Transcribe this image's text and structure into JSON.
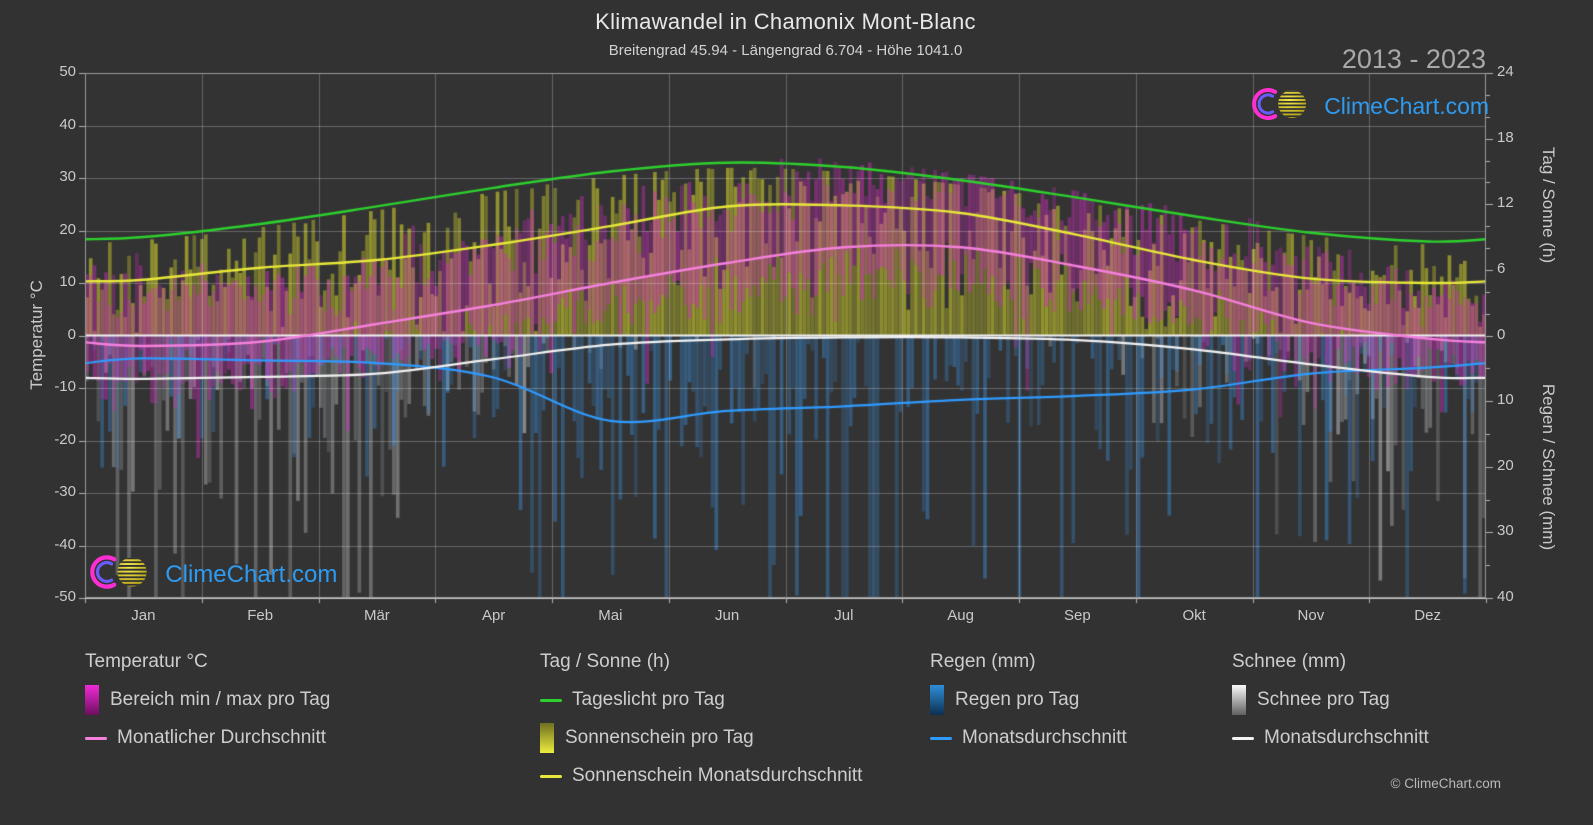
{
  "meta": {
    "title": "Klimawandel in Chamonix Mont-Blanc",
    "subtitle": "Breitengrad 45.94 - Längengrad 6.704 - Höhe 1041.0",
    "year_range": "2013 - 2023",
    "copyright": "© ClimeChart.com",
    "brand": "ClimeChart.com"
  },
  "axes": {
    "left": {
      "title": "Temperatur °C",
      "ticks": [
        50,
        40,
        30,
        20,
        10,
        0,
        -10,
        -20,
        -30,
        -40,
        -50
      ],
      "range": [
        -50,
        50
      ]
    },
    "right_sun": {
      "title": "Tag / Sonne (h)",
      "ticks": [
        24,
        18,
        12,
        6,
        0
      ],
      "range": [
        0,
        24
      ]
    },
    "right_precip": {
      "title": "Regen / Schnee (mm)",
      "ticks": [
        10,
        20,
        30,
        40
      ],
      "range": [
        0,
        40
      ],
      "inverted": true
    },
    "x": {
      "months": [
        "Jan",
        "Feb",
        "Mär",
        "Apr",
        "Mai",
        "Jun",
        "Jul",
        "Aug",
        "Sep",
        "Okt",
        "Nov",
        "Dez"
      ]
    }
  },
  "colors": {
    "daylight_line": "#2dd02d",
    "sunshine_line": "#e8e83a",
    "temp_avg_line": "#f580dd",
    "rain_avg_line": "#2f9bff",
    "snow_avg_line": "#f2f2f2",
    "sun_bar": "#d7d72d",
    "temp_bar": "#d02dbe",
    "rain_bar": "#3a8cd7",
    "snow_bar": "#b5b5b5",
    "brand_blue": "#2e9bf0",
    "logo_magenta": "#ff2ed2",
    "logo_inner": "#6a5cff",
    "logo_yellow": "#e8d829",
    "swatch_temp_range": [
      "#f02ad8",
      "#6d0f5e"
    ],
    "swatch_sunshine": [
      "#6f6f22",
      "#ecec3e"
    ],
    "swatch_rain": [
      "#2e8fd8",
      "#0d2f52"
    ],
    "swatch_snow": [
      "#fafafa",
      "#606060"
    ]
  },
  "legend": {
    "groups": [
      {
        "title": "Temperatur °C",
        "items": [
          {
            "swatch": "gradient",
            "key": "swatch_temp_range",
            "label": "Bereich min / max pro Tag"
          },
          {
            "swatch": "dash",
            "key": "temp_avg_line",
            "label": "Monatlicher Durchschnitt"
          }
        ]
      },
      {
        "title": "Tag / Sonne (h)",
        "items": [
          {
            "swatch": "dash",
            "key": "daylight_line",
            "label": "Tageslicht pro Tag"
          },
          {
            "swatch": "gradient",
            "key": "swatch_sunshine",
            "label": "Sonnenschein pro Tag"
          },
          {
            "swatch": "dash",
            "key": "sunshine_line",
            "label": "Sonnenschein Monatsdurchschnitt"
          }
        ]
      },
      {
        "title": "Regen (mm)",
        "items": [
          {
            "swatch": "gradient",
            "key": "swatch_rain",
            "label": "Regen pro Tag"
          },
          {
            "swatch": "dash",
            "key": "rain_avg_line",
            "label": "Monatsdurchschnitt"
          }
        ]
      },
      {
        "title": "Schnee (mm)",
        "items": [
          {
            "swatch": "gradient",
            "key": "swatch_snow",
            "label": "Schnee pro Tag"
          },
          {
            "swatch": "dash",
            "key": "snow_avg_line",
            "label": "Monatsdurchschnitt"
          }
        ]
      }
    ]
  },
  "chart_data": {
    "type": "climate-combo",
    "title": "Klimawandel in Chamonix Mont-Blanc",
    "months": [
      "Jan",
      "Feb",
      "Mär",
      "Apr",
      "Mai",
      "Jun",
      "Jul",
      "Aug",
      "Sep",
      "Okt",
      "Nov",
      "Dez"
    ],
    "temp_axis_range": [
      -50,
      50
    ],
    "sun_axis_range": [
      0,
      24
    ],
    "precip_axis_range": [
      0,
      40
    ],
    "series": [
      {
        "name": "Tageslicht pro Tag",
        "unit": "h",
        "type": "line",
        "values": [
          9.0,
          10.2,
          11.8,
          13.5,
          15.0,
          15.8,
          15.4,
          14.2,
          12.6,
          10.9,
          9.4,
          8.6
        ]
      },
      {
        "name": "Sonnenschein Monatsdurchschnitt",
        "unit": "h",
        "type": "line",
        "values": [
          5.1,
          6.2,
          6.9,
          8.3,
          10.0,
          11.8,
          11.9,
          11.2,
          9.2,
          6.9,
          5.2,
          4.8
        ]
      },
      {
        "name": "Monatlicher Durchschnitt Temperatur",
        "unit": "°C",
        "type": "line",
        "values": [
          -2.0,
          -1.2,
          2.2,
          5.8,
          10.0,
          13.8,
          16.8,
          16.8,
          13.2,
          8.6,
          2.4,
          -0.6
        ]
      },
      {
        "name": "Monatsdurchschnitt Regen",
        "unit": "mm",
        "type": "line",
        "values": [
          3.5,
          3.8,
          4.2,
          6.4,
          13.0,
          11.5,
          10.8,
          9.8,
          9.2,
          8.2,
          5.8,
          4.9
        ]
      },
      {
        "name": "Monatsdurchschnitt Schnee",
        "unit": "mm",
        "type": "line",
        "values": [
          6.6,
          6.3,
          5.8,
          3.6,
          1.4,
          0.6,
          0.3,
          0.3,
          0.7,
          2.1,
          4.4,
          6.3
        ]
      }
    ],
    "daily_bars": {
      "seed": 987654321,
      "sun_frac_noise": 0.3,
      "temp_max_offset": [
        10,
        10,
        10,
        10.5,
        11,
        12,
        12.5,
        12.5,
        11.5,
        10,
        9,
        9
      ],
      "temp_min_offset": [
        6,
        6,
        6,
        5.5,
        5,
        5,
        6,
        6,
        5,
        5,
        5,
        6
      ],
      "temp_noise": 3.0,
      "cold_snap_prob": 0.05,
      "rain_prob": [
        0.5,
        0.5,
        0.55,
        0.6,
        0.75,
        0.7,
        0.65,
        0.65,
        0.6,
        0.6,
        0.55,
        0.5
      ],
      "snow_prob": [
        0.85,
        0.85,
        0.8,
        0.6,
        0.25,
        0.1,
        0.05,
        0.05,
        0.15,
        0.45,
        0.7,
        0.85
      ],
      "snow_boost": 2.6
    }
  }
}
